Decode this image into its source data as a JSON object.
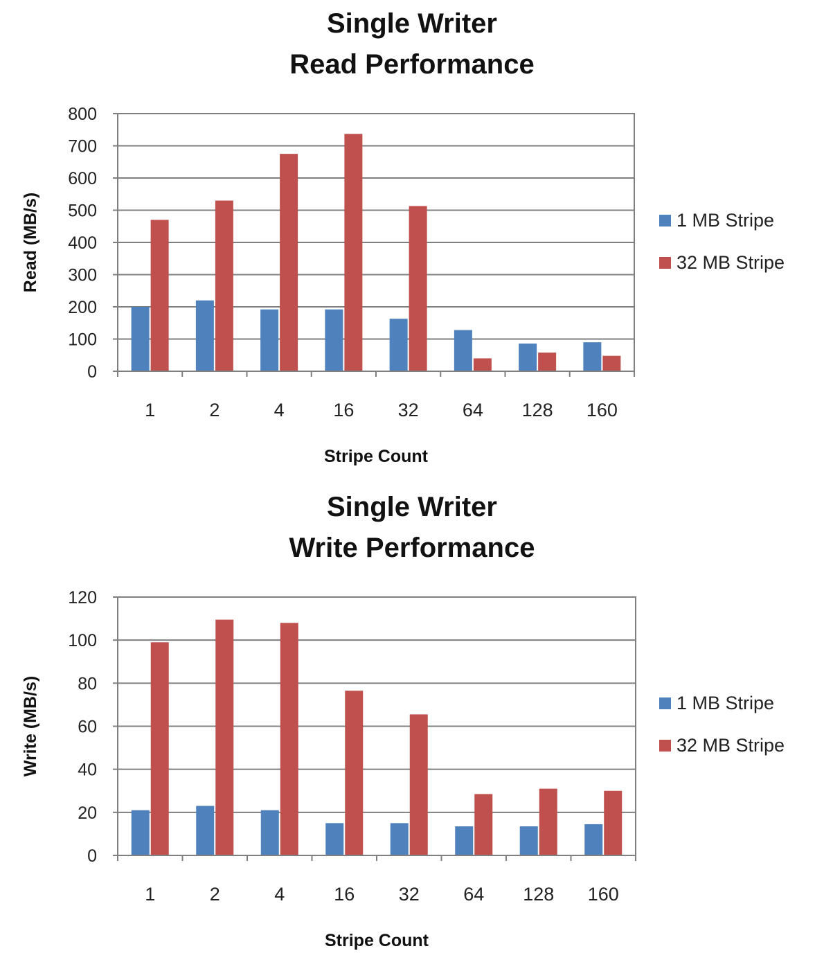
{
  "colors": {
    "series1": "#4f81bd",
    "series2": "#c0504d",
    "grid": "#7f7f7f",
    "axis": "#7f7f7f",
    "tick_text": "#222222",
    "cat_text": "#222222"
  },
  "chart_data": [
    {
      "type": "bar",
      "title_lines": [
        "Single Writer",
        "Read Performance"
      ],
      "xlabel": "Stripe Count",
      "ylabel": "Read (MB/s)",
      "categories": [
        "1",
        "2",
        "4",
        "16",
        "32",
        "64",
        "128",
        "160"
      ],
      "ylim": [
        0,
        800
      ],
      "yticks": [
        "0",
        "100",
        "200",
        "300",
        "400",
        "500",
        "600",
        "700",
        "800"
      ],
      "grid": true,
      "legend_position": "right",
      "series": [
        {
          "name": "1 MB Stripe",
          "values": [
            200,
            220,
            192,
            192,
            163,
            128,
            86,
            90
          ]
        },
        {
          "name": "32 MB Stripe",
          "values": [
            470,
            530,
            675,
            737,
            513,
            40,
            58,
            48
          ]
        }
      ]
    },
    {
      "type": "bar",
      "title_lines": [
        "Single Writer",
        "Write Performance"
      ],
      "xlabel": "Stripe Count",
      "ylabel": "Write (MB/s)",
      "categories": [
        "1",
        "2",
        "4",
        "16",
        "32",
        "64",
        "128",
        "160"
      ],
      "ylim": [
        0,
        120
      ],
      "yticks": [
        "0",
        "20",
        "40",
        "60",
        "80",
        "100",
        "120"
      ],
      "grid": true,
      "legend_position": "right",
      "series": [
        {
          "name": "1 MB Stripe",
          "values": [
            21,
            23,
            21,
            15,
            15,
            13.5,
            13.5,
            14.5
          ]
        },
        {
          "name": "32 MB Stripe",
          "values": [
            99,
            109.5,
            108,
            76.5,
            65.5,
            28.5,
            31,
            30
          ]
        }
      ]
    }
  ]
}
